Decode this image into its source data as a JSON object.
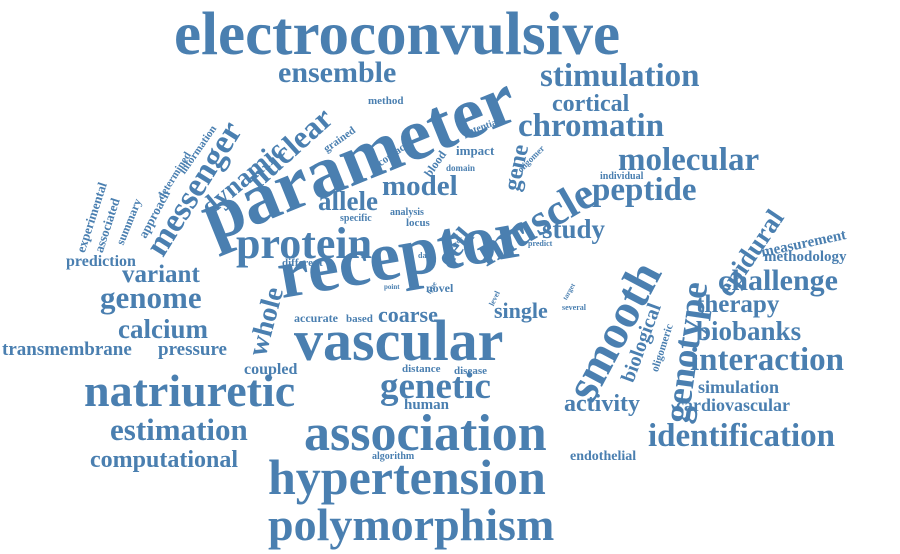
{
  "word_cloud": {
    "color": "#4a7fb0",
    "words": [
      "electroconvulsive",
      "parameter",
      "receptor",
      "vascular",
      "association",
      "hypertension",
      "polymorphism",
      "natriuretic",
      "smooth",
      "muscle",
      "protein",
      "stimulation",
      "chromatin",
      "ensemble",
      "messenger",
      "nuclear",
      "dynamic",
      "molecular",
      "peptide",
      "genotype",
      "epidural",
      "challenge",
      "genome",
      "calcium",
      "whole",
      "estimation",
      "identification",
      "interaction",
      "genetic",
      "computational",
      "transmembrane",
      "pressure",
      "model",
      "allele",
      "cell",
      "gene",
      "cortical",
      "study",
      "variant",
      "therapy",
      "biobanks",
      "activity",
      "coarse",
      "single",
      "coupled",
      "simulation",
      "cardiovascular",
      "methodology",
      "measurement",
      "biological",
      "oligomeric",
      "endothelial",
      "human",
      "prediction",
      "experimental",
      "associated",
      "summary",
      "approach",
      "determined",
      "information",
      "grained",
      "method",
      "potential",
      "oligomer",
      "impact",
      "blood",
      "contact",
      "domain",
      "individual",
      "specific",
      "analysis",
      "locus",
      "error",
      "data",
      "predict",
      "different",
      "point",
      "type",
      "novel",
      "accurate",
      "based",
      "distance",
      "disease",
      "algorithm",
      "level",
      "target",
      "several"
    ]
  }
}
